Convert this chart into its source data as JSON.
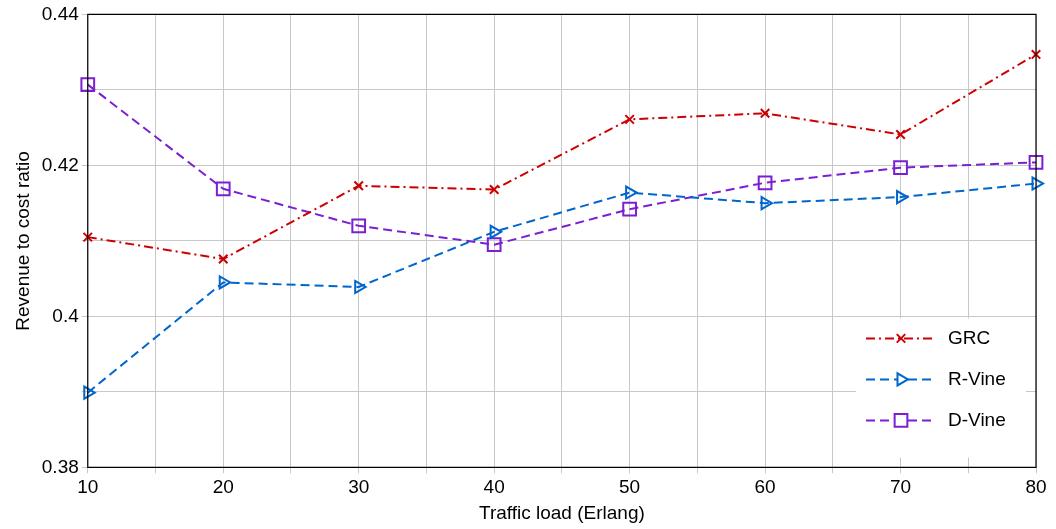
{
  "chart_data": {
    "type": "line",
    "xlabel": "Traffic load (Erlang)",
    "ylabel": "Revenue to cost ratio",
    "x": [
      10,
      20,
      30,
      40,
      50,
      60,
      70,
      80
    ],
    "xlim": [
      10,
      80
    ],
    "xticks": [
      10,
      {
        "value": 15,
        "label": null
      },
      20,
      {
        "value": 25,
        "label": null
      },
      30,
      {
        "value": 35,
        "label": null
      },
      40,
      {
        "value": 45,
        "label": null
      },
      50,
      {
        "value": 55,
        "label": null
      },
      60,
      {
        "value": 65,
        "label": null
      },
      70,
      {
        "value": 75,
        "label": null
      },
      80
    ],
    "ylim": [
      0.38,
      0.44
    ],
    "yticks": [
      0.38,
      {
        "value": 0.39,
        "label": null
      },
      0.4,
      {
        "value": 0.41,
        "label": null
      },
      0.42,
      {
        "value": 0.43,
        "label": null
      },
      0.44
    ],
    "grid": true,
    "legend": "bottom right",
    "series": [
      {
        "name": "GRC",
        "color": "#cc0000",
        "marker": "cross",
        "line_style": "dashdot",
        "values": [
          0.4105,
          0.4076,
          0.4173,
          0.4168,
          0.4261,
          0.4269,
          0.4241,
          0.4347
        ]
      },
      {
        "name": "R-Vine",
        "color": "#0066cc",
        "marker": "triangle",
        "line_style": "dashed",
        "values": [
          0.3899,
          0.4045,
          0.4039,
          0.4112,
          0.4164,
          0.415,
          0.4158,
          0.4176
        ]
      },
      {
        "name": "D-Vine",
        "color": "#7a1fd1",
        "marker": "square",
        "line_style": "dashed",
        "values": [
          0.4307,
          0.4169,
          0.412,
          0.4095,
          0.4142,
          0.4177,
          0.4197,
          0.4204
        ]
      }
    ]
  }
}
